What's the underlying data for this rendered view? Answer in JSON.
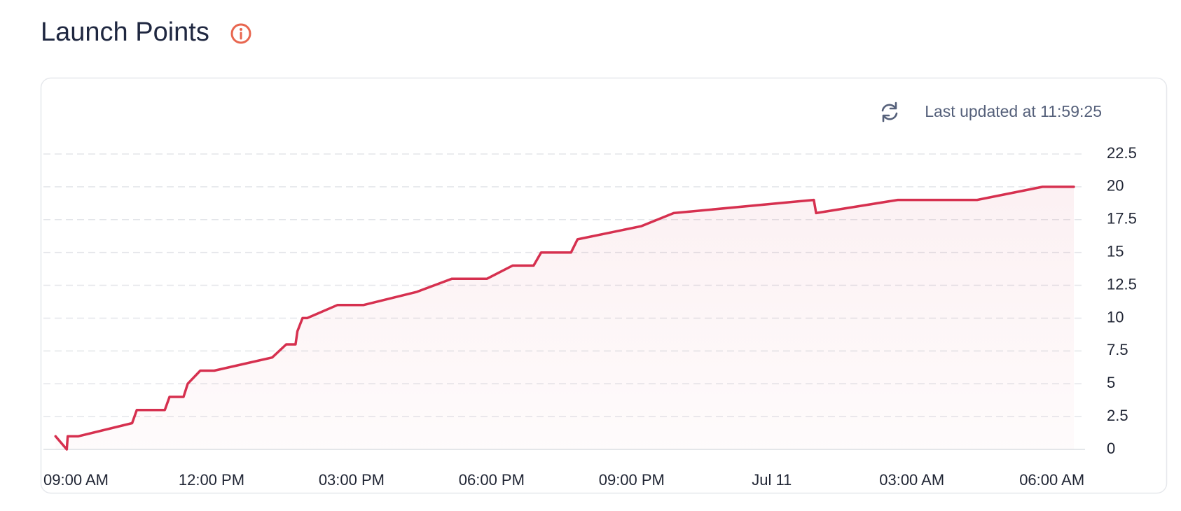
{
  "chart_data": {
    "type": "line",
    "title": "Launch Points",
    "annotation": "Last updated at 11:59:25",
    "color": "#d6304f",
    "x": [
      8.66,
      8.9,
      8.92,
      9.15,
      10.3,
      10.4,
      11.0,
      11.1,
      11.4,
      11.49,
      11.76,
      12.06,
      13.3,
      13.6,
      13.8,
      13.84,
      13.95,
      14.05,
      14.7,
      15.26,
      16.4,
      17.15,
      17.9,
      18.45,
      18.9,
      19.06,
      19.7,
      19.84,
      21.2,
      21.9,
      24.9,
      24.95,
      26.7,
      28.4,
      29.8,
      30.47
    ],
    "values": [
      1,
      0,
      1,
      1,
      2,
      3,
      3,
      4,
      4,
      5,
      6,
      6,
      7,
      8,
      8,
      9,
      10,
      10,
      11,
      11,
      12,
      13,
      13,
      14,
      14,
      15,
      15,
      16,
      17,
      18,
      19,
      18,
      19,
      19,
      20,
      20
    ],
    "xlim": [
      8.4,
      30.5
    ],
    "xticks": [
      {
        "value": 9,
        "label": "09:00 AM"
      },
      {
        "value": 12,
        "label": "12:00 PM"
      },
      {
        "value": 15,
        "label": "03:00 PM"
      },
      {
        "value": 18,
        "label": "06:00 PM"
      },
      {
        "value": 21,
        "label": "09:00 PM"
      },
      {
        "value": 24,
        "label": "Jul 11"
      },
      {
        "value": 27,
        "label": "03:00 AM"
      },
      {
        "value": 30,
        "label": "06:00 AM"
      }
    ],
    "ylim": [
      0,
      22.5
    ],
    "yticks": [
      0,
      2.5,
      5,
      7.5,
      10,
      12.5,
      15,
      17.5,
      20,
      22.5
    ],
    "grid": true
  }
}
